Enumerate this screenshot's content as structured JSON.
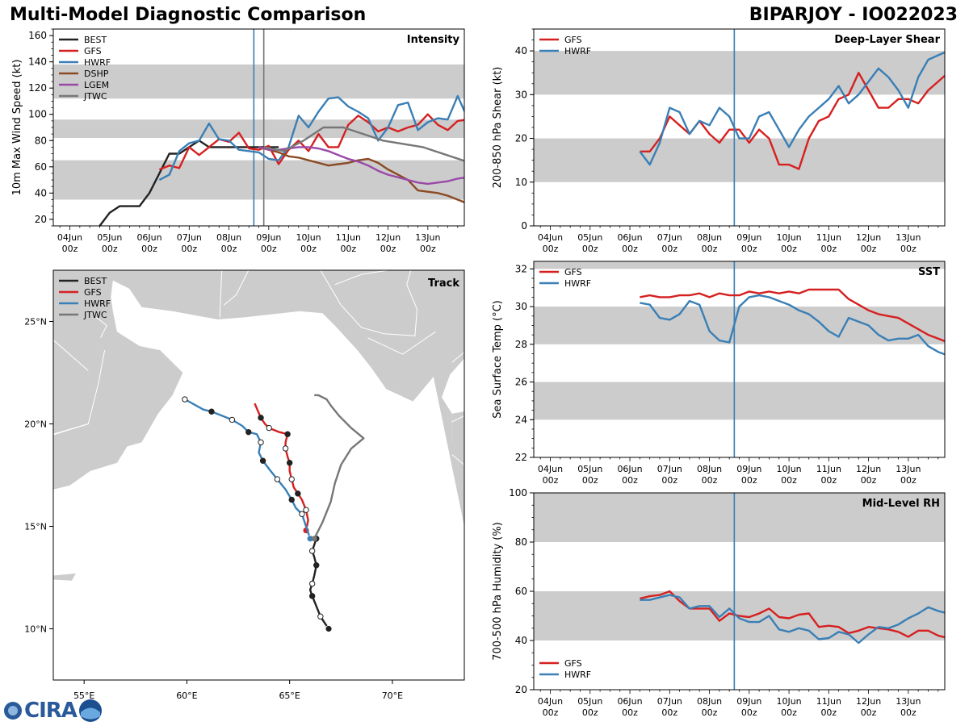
{
  "header": {
    "left_title": "Multi-Model Diagnostic Comparison",
    "right_title": "BIPARJOY - IO022023"
  },
  "colors": {
    "BEST": "#222222",
    "GFS": "#d62020",
    "HWRF": "#3a7fb5",
    "DSHP": "#8b4a22",
    "LGEM": "#9a49a8",
    "JTWC": "#777777",
    "band": "#cccccc"
  },
  "logo": {
    "text": "CIRA"
  },
  "time_axis": {
    "labels": [
      "04Jun\n00z",
      "05Jun\n00z",
      "06Jun\n00z",
      "07Jun\n00z",
      "08Jun\n00z",
      "09Jun\n00z",
      "10Jun\n00z",
      "11Jun\n00z",
      "12Jun\n00z",
      "13Jun\n00z"
    ],
    "range_hours": [
      -10,
      238
    ],
    "init_hour": 111
  },
  "chart_data": [
    {
      "id": "intensity",
      "type": "line",
      "label": "Intensity",
      "ylabel": "10m Max Wind Speed (kt)",
      "ylim": [
        15,
        165
      ],
      "yticks": [
        20,
        40,
        60,
        80,
        100,
        120,
        140,
        160
      ],
      "bands": [
        [
          35,
          65
        ],
        [
          82,
          96
        ],
        [
          112,
          138
        ]
      ],
      "vlines": [
        {
          "x": 111,
          "color": "HWRF"
        },
        {
          "x": 117,
          "color": "JTWC"
        }
      ],
      "legend_position": "top-left",
      "series": [
        {
          "name": "BEST",
          "x": [
            18,
            24,
            30,
            36,
            42,
            48,
            54,
            60,
            66,
            72,
            78,
            84,
            90,
            96,
            102,
            108,
            114,
            120,
            126
          ],
          "y": [
            15,
            25,
            30,
            30,
            30,
            40,
            55,
            70,
            70,
            75,
            80,
            75,
            75,
            75,
            75,
            75,
            75,
            75,
            75
          ]
        },
        {
          "name": "GFS",
          "x": [
            54,
            60,
            66,
            72,
            78,
            84,
            90,
            96,
            102,
            108,
            114,
            120,
            126,
            132,
            138,
            144,
            150,
            156,
            162,
            168,
            174,
            180,
            186,
            192,
            198,
            204,
            210,
            216,
            222,
            228,
            234,
            240
          ],
          "y": [
            58,
            61,
            59,
            75,
            69,
            75,
            81,
            79,
            86,
            74,
            73,
            76,
            62,
            73,
            80,
            72,
            85,
            75,
            75,
            92,
            99,
            94,
            87,
            90,
            87,
            90,
            92,
            100,
            92,
            88,
            95,
            96
          ]
        },
        {
          "name": "HWRF",
          "x": [
            54,
            60,
            66,
            72,
            78,
            84,
            90,
            96,
            102,
            108,
            114,
            120,
            126,
            132,
            138,
            144,
            150,
            156,
            162,
            168,
            174,
            180,
            186,
            192,
            198,
            204,
            210,
            216,
            222,
            228,
            234,
            240
          ],
          "y": [
            50,
            54,
            72,
            78,
            80,
            93,
            81,
            80,
            73,
            72,
            71,
            66,
            65,
            75,
            99,
            90,
            102,
            112,
            113,
            106,
            102,
            97,
            80,
            90,
            107,
            109,
            88,
            94,
            97,
            96,
            114,
            97
          ]
        },
        {
          "name": "DSHP",
          "x": [
            114,
            120,
            126,
            132,
            138,
            144,
            150,
            156,
            162,
            168,
            174,
            180,
            186,
            192,
            198,
            204,
            210,
            216,
            222,
            228,
            234,
            240
          ],
          "y": [
            75,
            73,
            71,
            68,
            67,
            65,
            63,
            61,
            62,
            63,
            65,
            66,
            63,
            58,
            54,
            50,
            42,
            41,
            40,
            38,
            35,
            32
          ]
        },
        {
          "name": "LGEM",
          "x": [
            114,
            120,
            126,
            132,
            138,
            144,
            150,
            156,
            162,
            168,
            174,
            180,
            186,
            192,
            198,
            204,
            210,
            216,
            222,
            228,
            234,
            240
          ],
          "y": [
            75,
            73,
            73,
            74,
            75,
            75,
            74,
            72,
            69,
            66,
            64,
            61,
            57,
            54,
            52,
            50,
            48,
            47,
            48,
            49,
            51,
            52
          ]
        },
        {
          "name": "JTWC",
          "x": [
            117,
            129,
            141,
            153,
            165,
            177,
            189,
            213,
            237,
            240
          ],
          "y": [
            75,
            72,
            80,
            90,
            90,
            85,
            80,
            75,
            65,
            64
          ]
        }
      ]
    },
    {
      "id": "shear",
      "type": "line",
      "label": "Deep-Layer Shear",
      "ylabel": "200-850 hPa Shear (kt)",
      "ylim": [
        0,
        45
      ],
      "yticks": [
        0,
        10,
        20,
        30,
        40
      ],
      "bands": [
        [
          10,
          20
        ],
        [
          30,
          40
        ]
      ],
      "vlines": [
        {
          "x": 111,
          "color": "HWRF"
        }
      ],
      "marker_x": 111,
      "legend_position": "top-left",
      "series": [
        {
          "name": "GFS",
          "x": [
            54,
            60,
            66,
            72,
            78,
            84,
            90,
            96,
            102,
            108,
            114,
            120,
            126,
            132,
            138,
            144,
            150,
            156,
            162,
            168,
            174,
            180,
            186,
            192,
            198,
            204,
            210,
            216,
            222,
            228,
            234,
            240
          ],
          "y": [
            17,
            17,
            20,
            25,
            23,
            21,
            24,
            21,
            19,
            22,
            22,
            19,
            22,
            20,
            14,
            14,
            13,
            20,
            24,
            25,
            29,
            30,
            35,
            31,
            27,
            27,
            29,
            29,
            28,
            31,
            33,
            35
          ]
        },
        {
          "name": "HWRF",
          "x": [
            54,
            60,
            66,
            72,
            78,
            84,
            90,
            96,
            102,
            108,
            114,
            120,
            126,
            132,
            138,
            144,
            150,
            156,
            162,
            168,
            174,
            180,
            186,
            192,
            198,
            204,
            210,
            216,
            222,
            228,
            234,
            240
          ],
          "y": [
            17,
            14,
            19,
            27,
            26,
            21,
            24,
            23,
            27,
            25,
            20,
            20,
            25,
            26,
            22,
            18,
            22,
            25,
            27,
            29,
            32,
            28,
            30,
            33,
            36,
            34,
            31,
            27,
            34,
            38,
            39,
            40
          ]
        }
      ]
    },
    {
      "id": "sst",
      "type": "line",
      "label": "SST",
      "ylabel": "Sea Surface Temp (°C)",
      "ylim": [
        22,
        32.4
      ],
      "yticks": [
        22,
        24,
        26,
        28,
        30,
        32
      ],
      "bands": [
        [
          24,
          26
        ],
        [
          28,
          30
        ],
        [
          32,
          34
        ]
      ],
      "vlines": [
        {
          "x": 111,
          "color": "HWRF"
        }
      ],
      "marker_x": 111,
      "legend_position": "top-left",
      "series": [
        {
          "name": "GFS",
          "x": [
            54,
            60,
            66,
            72,
            78,
            84,
            90,
            96,
            102,
            108,
            114,
            120,
            126,
            132,
            138,
            144,
            150,
            156,
            162,
            168,
            174,
            180,
            186,
            192,
            198,
            204,
            210,
            216,
            222,
            228,
            234,
            240
          ],
          "y": [
            30.5,
            30.6,
            30.5,
            30.5,
            30.6,
            30.6,
            30.7,
            30.5,
            30.7,
            30.6,
            30.6,
            30.8,
            30.7,
            30.8,
            30.7,
            30.8,
            30.7,
            30.9,
            30.9,
            30.9,
            30.9,
            30.4,
            30.1,
            29.8,
            29.6,
            29.5,
            29.4,
            29.1,
            28.8,
            28.5,
            28.3,
            28.1
          ]
        },
        {
          "name": "HWRF",
          "x": [
            54,
            60,
            66,
            72,
            78,
            84,
            90,
            96,
            102,
            108,
            114,
            120,
            126,
            132,
            138,
            144,
            150,
            156,
            162,
            168,
            174,
            180,
            186,
            192,
            198,
            204,
            210,
            216,
            222,
            228,
            234,
            240
          ],
          "y": [
            30.2,
            30.1,
            29.4,
            29.3,
            29.6,
            30.3,
            30.1,
            28.7,
            28.2,
            28.1,
            30.0,
            30.5,
            30.6,
            30.5,
            30.3,
            30.1,
            29.8,
            29.6,
            29.2,
            28.7,
            28.4,
            29.4,
            29.2,
            29.0,
            28.5,
            28.2,
            28.3,
            28.3,
            28.5,
            27.9,
            27.6,
            27.4
          ]
        }
      ]
    },
    {
      "id": "rh",
      "type": "line",
      "label": "Mid-Level RH",
      "ylabel": "700-500 hPa Humidity (%)",
      "ylim": [
        20,
        100
      ],
      "yticks": [
        20,
        40,
        60,
        80,
        100
      ],
      "bands": [
        [
          40,
          60
        ],
        [
          80,
          100
        ]
      ],
      "vlines": [
        {
          "x": 111,
          "color": "HWRF"
        }
      ],
      "marker_x": 111,
      "legend_position": "bottom-left",
      "series": [
        {
          "name": "GFS",
          "x": [
            54,
            60,
            66,
            72,
            78,
            84,
            90,
            96,
            102,
            108,
            114,
            120,
            126,
            132,
            138,
            144,
            150,
            156,
            162,
            168,
            174,
            180,
            186,
            192,
            198,
            204,
            210,
            216,
            222,
            228,
            234,
            240
          ],
          "y": [
            57,
            58,
            58.5,
            60,
            56,
            53,
            53,
            53,
            48,
            51,
            50,
            49.5,
            51,
            53,
            49.5,
            49,
            50.5,
            51,
            45.5,
            46,
            45.5,
            43,
            44,
            45.5,
            45,
            44.5,
            43.5,
            41.5,
            44,
            44,
            42,
            41
          ]
        },
        {
          "name": "HWRF",
          "x": [
            54,
            60,
            66,
            72,
            78,
            84,
            90,
            96,
            102,
            108,
            114,
            120,
            126,
            132,
            138,
            144,
            150,
            156,
            162,
            168,
            174,
            180,
            186,
            192,
            198,
            204,
            210,
            216,
            222,
            228,
            234,
            240
          ],
          "y": [
            56.5,
            56.5,
            57.5,
            58.5,
            57.5,
            53,
            54,
            54,
            49.5,
            53,
            49,
            47.5,
            47.5,
            50,
            44.5,
            43.5,
            45,
            44,
            40.5,
            41,
            43.5,
            42.5,
            39,
            42.5,
            45.5,
            45,
            46.5,
            49,
            51,
            53.5,
            52,
            51
          ]
        }
      ]
    },
    {
      "id": "track",
      "type": "map",
      "label": "Track",
      "xlim": [
        53.5,
        73.5
      ],
      "ylim": [
        7.5,
        27.5
      ],
      "xticks": [
        55,
        60,
        65,
        70
      ],
      "xtick_labels": [
        "55°E",
        "60°E",
        "65°E",
        "70°E"
      ],
      "yticks": [
        10,
        15,
        20,
        25
      ],
      "ytick_labels": [
        "10°N",
        "15°N",
        "20°N",
        "25°N"
      ],
      "legend_position": "top-left",
      "series": [
        {
          "name": "BEST",
          "lon": [
            66.9,
            66.7,
            66.5,
            66.3,
            66.1,
            66.0,
            66.1,
            66.2,
            66.3,
            66.2,
            66.1,
            66.2,
            66.3,
            66.0
          ],
          "lat": [
            10.0,
            10.3,
            10.6,
            11.1,
            11.6,
            11.9,
            12.2,
            12.6,
            13.1,
            13.5,
            13.8,
            14.1,
            14.4,
            14.3
          ]
        },
        {
          "name": "GFS",
          "lon": [
            65.8,
            65.9,
            65.8,
            65.6,
            65.4,
            65.2,
            65.1,
            65.0,
            65.0,
            64.9,
            64.8,
            64.8,
            64.9,
            64.5,
            64.0,
            63.8,
            63.6,
            63.3
          ],
          "lat": [
            14.8,
            15.3,
            15.8,
            16.3,
            16.6,
            16.9,
            17.3,
            17.7,
            18.1,
            18.4,
            18.8,
            19.1,
            19.5,
            19.6,
            19.8,
            20.0,
            20.3,
            21.0
          ]
        },
        {
          "name": "HWRF",
          "lon": [
            66.0,
            65.8,
            65.6,
            65.3,
            65.1,
            64.8,
            64.4,
            64.0,
            63.7,
            63.5,
            63.6,
            63.4,
            63.0,
            62.7,
            62.2,
            61.7,
            61.2,
            60.8,
            59.9
          ],
          "lat": [
            14.4,
            15.0,
            15.6,
            15.9,
            16.3,
            16.8,
            17.3,
            17.8,
            18.2,
            18.6,
            19.1,
            19.5,
            19.6,
            19.9,
            20.2,
            20.4,
            20.6,
            20.7,
            21.2
          ]
        },
        {
          "name": "JTWC",
          "lon": [
            66.2,
            66.6,
            67.0,
            67.2,
            67.5,
            68.0,
            68.6,
            68.0,
            67.4,
            67.0,
            66.8,
            66.4,
            66.2
          ],
          "lat": [
            14.4,
            15.2,
            16.2,
            17.1,
            18.0,
            18.8,
            19.3,
            19.8,
            20.4,
            20.9,
            21.2,
            21.4,
            21.4
          ]
        }
      ]
    }
  ]
}
